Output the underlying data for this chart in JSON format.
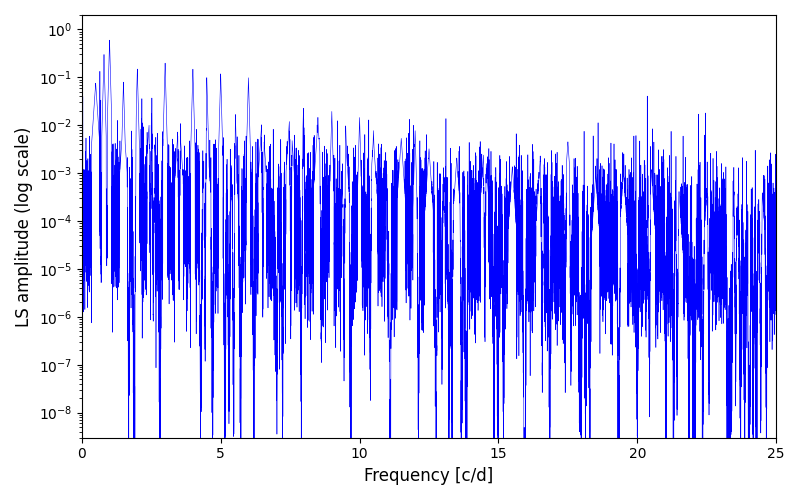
{
  "title": "",
  "xlabel": "Frequency [c/d]",
  "ylabel": "LS amplitude (log scale)",
  "line_color": "#0000ff",
  "line_width": 0.4,
  "xlim": [
    0,
    25
  ],
  "ylim_bottom": 3e-09,
  "ylim_top": 2.0,
  "yscale": "log",
  "background_color": "#ffffff",
  "freq_min": 0.0,
  "freq_max": 25.0,
  "n_points": 15000,
  "seed": 12345
}
